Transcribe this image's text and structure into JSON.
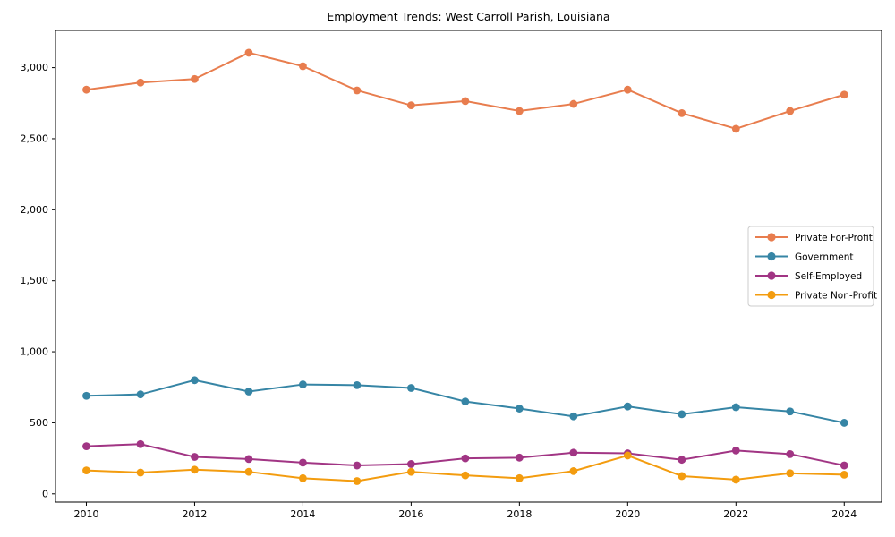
{
  "chart_data": {
    "type": "line",
    "title": "Employment Trends: West Carroll Parish, Louisiana",
    "xlabel": "",
    "ylabel": "",
    "x": [
      2010,
      2011,
      2012,
      2013,
      2014,
      2015,
      2016,
      2017,
      2018,
      2019,
      2020,
      2021,
      2022,
      2023,
      2024
    ],
    "series": [
      {
        "name": "Private For-Profit",
        "color": "#e87d4e",
        "values": [
          2845,
          2895,
          2920,
          3105,
          3010,
          2840,
          2735,
          2765,
          2695,
          2745,
          2845,
          2680,
          2570,
          2695,
          2810
        ]
      },
      {
        "name": "Government",
        "color": "#3685a5",
        "values": [
          690,
          700,
          800,
          720,
          770,
          765,
          745,
          650,
          600,
          545,
          615,
          560,
          610,
          580,
          500
        ]
      },
      {
        "name": "Self-Employed",
        "color": "#a13584",
        "values": [
          335,
          350,
          260,
          245,
          220,
          200,
          210,
          250,
          255,
          290,
          285,
          240,
          305,
          280,
          200
        ]
      },
      {
        "name": "Private Non-Profit",
        "color": "#f39c0f",
        "values": [
          165,
          150,
          170,
          155,
          110,
          90,
          155,
          130,
          110,
          160,
          270,
          125,
          100,
          145,
          135
        ]
      }
    ],
    "xlim": [
      2009.43,
      2024.69
    ],
    "ylim": [
      -58,
      3262
    ],
    "xticks": {
      "values": [
        2010,
        2012,
        2014,
        2016,
        2018,
        2020,
        2022,
        2024
      ],
      "labels": [
        "2010",
        "2012",
        "2014",
        "2016",
        "2018",
        "2020",
        "2022",
        "2024"
      ]
    },
    "yticks": {
      "values": [
        0,
        500,
        1000,
        1500,
        2000,
        2500,
        3000
      ],
      "labels": [
        "0",
        "500",
        "1,000",
        "1,500",
        "2,000",
        "2,500",
        "3,000"
      ]
    },
    "grid": false,
    "legend_position": "right-middle",
    "marker": "circle",
    "frame_color": "#000000",
    "legend_border_color": "#cccccc"
  }
}
